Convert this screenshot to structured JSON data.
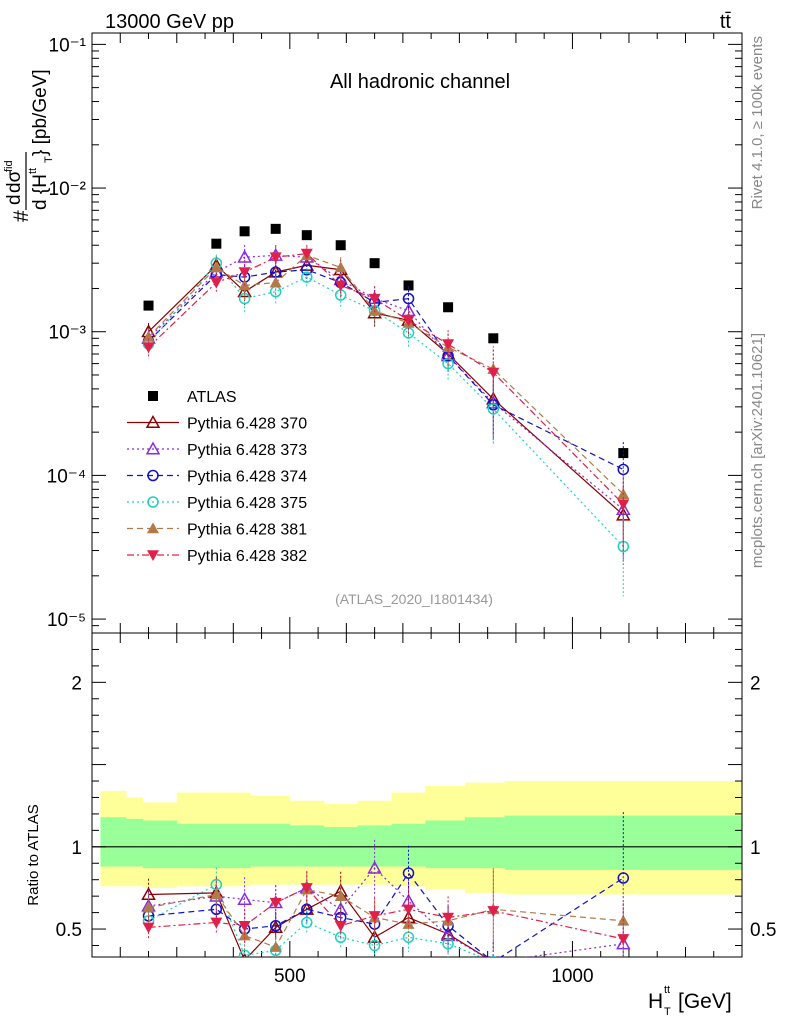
{
  "header": {
    "left": "13000 GeV pp",
    "right": "tt̄"
  },
  "side_labels": {
    "rivet": "Rivet 4.1.0, ≥ 100k events",
    "mcplots": "mcplots.cern.ch [arXiv:2401.10621]"
  },
  "chart_data": [
    {
      "type": "scatter",
      "panel": "main",
      "title": "All hadronic channel",
      "watermark": "(ATLAS_2020_I1801434)",
      "ylabel": "#dσ/d{H_T^tt} [pb/GeV]",
      "yscale": "log",
      "ylim": [
        8e-06,
        0.12
      ],
      "xlim": [
        150,
        1300
      ],
      "y_tick_labels": [
        "10⁻¹",
        "10⁻²",
        "10⁻³",
        "10⁻⁴",
        "10⁻⁵"
      ],
      "x": [
        250,
        370,
        420,
        475,
        530,
        590,
        650,
        710,
        780,
        860,
        1090
      ],
      "series": [
        {
          "name": "ATLAS",
          "marker": "square",
          "color": "#000000",
          "values": [
            0.00152,
            0.0041,
            0.005,
            0.0052,
            0.0047,
            0.004,
            0.003,
            0.0021,
            0.00148,
            0.0009,
            0.000143
          ]
        },
        {
          "name": "Pythia 6.428 370",
          "marker": "triangle-open",
          "line": "solid",
          "color": "#8b0000",
          "values": [
            0.001,
            0.0029,
            0.0019,
            0.0026,
            0.0029,
            0.0027,
            0.00135,
            0.0012,
            0.0007,
            0.00034,
            5.3e-05
          ]
        },
        {
          "name": "Pythia 6.428 373",
          "marker": "triangle-open",
          "line": "dotted",
          "color": "#8a2be2",
          "values": [
            0.0009,
            0.0026,
            0.0033,
            0.0034,
            0.0033,
            0.0023,
            0.0017,
            0.0014,
            0.00068,
            0.00032,
            5.8e-05
          ]
        },
        {
          "name": "Pythia 6.428 374",
          "marker": "circle-open",
          "line": "dashed",
          "color": "#1010c8",
          "values": [
            0.00086,
            0.0025,
            0.0024,
            0.0026,
            0.0027,
            0.0022,
            0.0016,
            0.0017,
            0.00068,
            0.00031,
            0.00011
          ]
        },
        {
          "name": "Pythia 6.428 375",
          "marker": "circle-open",
          "line": "dotted",
          "color": "#20d0c0",
          "values": [
            0.00082,
            0.003,
            0.0017,
            0.0019,
            0.0024,
            0.0018,
            0.0014,
            0.00098,
            0.0006,
            0.00029,
            3.2e-05
          ]
        },
        {
          "name": "Pythia 6.428 381",
          "marker": "triangle-filled",
          "line": "dashed",
          "color": "#b07a4a",
          "values": [
            0.00092,
            0.0028,
            0.0021,
            0.0022,
            0.0034,
            0.0028,
            0.0014,
            0.00115,
            0.00078,
            0.00055,
            7.4e-05
          ]
        },
        {
          "name": "Pythia 6.428 382",
          "marker": "triangle-down-filled",
          "line": "dashdot",
          "color": "#e0204a",
          "values": [
            0.00078,
            0.0022,
            0.0026,
            0.0033,
            0.0035,
            0.0021,
            0.0017,
            0.0012,
            0.00082,
            0.00052,
            6.3e-05
          ]
        }
      ]
    },
    {
      "type": "scatter",
      "panel": "ratio",
      "ylabel": "Ratio to ATLAS",
      "ylim": [
        0.33,
        2.3
      ],
      "xlim": [
        150,
        1300
      ],
      "xlabel": "H_T^tt [GeV]",
      "x_tick_labels": [
        "500",
        "1000"
      ],
      "y_tick_labels": [
        "2",
        "1",
        "0.5"
      ],
      "bands": {
        "edges": [
          165,
          210,
          240,
          300,
          360,
          430,
          500,
          560,
          620,
          680,
          740,
          810,
          880,
          1300
        ],
        "green_lo": [
          0.88,
          0.88,
          0.87,
          0.87,
          0.87,
          0.88,
          0.88,
          0.88,
          0.88,
          0.88,
          0.87,
          0.87,
          0.86
        ],
        "green_hi": [
          1.18,
          1.17,
          1.16,
          1.14,
          1.14,
          1.14,
          1.13,
          1.12,
          1.13,
          1.14,
          1.16,
          1.18,
          1.19
        ],
        "yellow_lo": [
          0.76,
          0.76,
          0.75,
          0.76,
          0.76,
          0.77,
          0.77,
          0.77,
          0.77,
          0.76,
          0.74,
          0.72,
          0.71
        ],
        "yellow_hi": [
          1.34,
          1.3,
          1.27,
          1.33,
          1.33,
          1.31,
          1.28,
          1.26,
          1.28,
          1.33,
          1.37,
          1.39,
          1.4
        ]
      },
      "x": [
        250,
        370,
        420,
        475,
        530,
        590,
        650,
        710,
        780,
        860,
        1090
      ],
      "series": [
        {
          "name": "Pythia 6.428 370",
          "values": [
            0.71,
            0.72,
            0.31,
            0.51,
            0.62,
            0.73,
            0.45,
            0.57,
            0.47,
            0.3,
            0.28
          ]
        },
        {
          "name": "Pythia 6.428 373",
          "values": [
            0.64,
            0.7,
            0.68,
            0.66,
            0.75,
            0.62,
            0.87,
            0.67,
            0.46,
            0.3,
            0.41
          ]
        },
        {
          "name": "Pythia 6.428 374",
          "values": [
            0.58,
            0.62,
            0.5,
            0.52,
            0.62,
            0.57,
            0.53,
            0.84,
            0.52,
            0.3,
            0.81
          ]
        },
        {
          "name": "Pythia 6.428 375",
          "values": [
            0.55,
            0.77,
            0.34,
            0.37,
            0.54,
            0.45,
            0.4,
            0.45,
            0.41,
            0.3,
            0.25
          ]
        },
        {
          "name": "Pythia 6.428 381",
          "values": [
            0.63,
            0.71,
            0.46,
            0.39,
            0.74,
            0.7,
            0.57,
            0.53,
            0.55,
            0.62,
            0.55
          ]
        },
        {
          "name": "Pythia 6.428 382",
          "values": [
            0.51,
            0.54,
            0.52,
            0.66,
            0.75,
            0.52,
            0.58,
            0.62,
            0.57,
            0.61,
            0.44
          ]
        }
      ]
    }
  ]
}
